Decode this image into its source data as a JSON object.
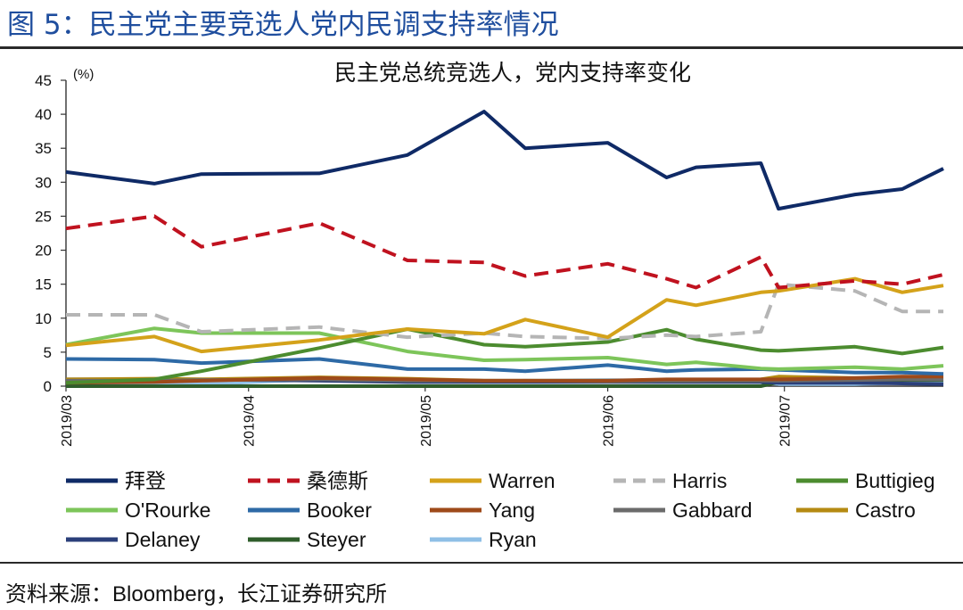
{
  "figure": {
    "title": "图 5：民主党主要竞选人党内民调支持率情况",
    "source_prefix": "资料来源：",
    "source_brand": "Bloomberg",
    "source_suffix": "，长江证券研究所"
  },
  "chart_data": {
    "type": "line",
    "title": "民主党总统竞选人，党内支持率变化",
    "unit": "(%)",
    "ylim": [
      0,
      45
    ],
    "yticks": [
      0,
      5,
      10,
      15,
      20,
      25,
      30,
      35,
      40,
      45
    ],
    "xlim": [
      "2019-03-01",
      "2019-07-28"
    ],
    "xticks": [
      {
        "date": "2019-03-01",
        "label": "2019/03"
      },
      {
        "date": "2019-04-01",
        "label": "2019/04"
      },
      {
        "date": "2019-05-01",
        "label": "2019/05"
      },
      {
        "date": "2019-06-01",
        "label": "2019/06"
      },
      {
        "date": "2019-07-01",
        "label": "2019/07"
      }
    ],
    "dates": [
      "2019-03-01",
      "2019-03-16",
      "2019-03-24",
      "2019-04-13",
      "2019-04-28",
      "2019-05-11",
      "2019-05-18",
      "2019-06-01",
      "2019-06-11",
      "2019-06-16",
      "2019-06-27",
      "2019-06-30",
      "2019-07-13",
      "2019-07-21",
      "2019-07-28"
    ],
    "legend_position": "bottom",
    "grid": false,
    "series": [
      {
        "name": "拜登",
        "color": "#0f2a66",
        "dash": "solid",
        "values": [
          31.5,
          29.8,
          31.2,
          31.3,
          34.0,
          40.4,
          35.0,
          35.8,
          30.7,
          32.2,
          32.8,
          26.1,
          28.2,
          29.0,
          32.0
        ]
      },
      {
        "name": "桑德斯",
        "color": "#c0121f",
        "dash": "dashed",
        "values": [
          23.2,
          25.0,
          20.5,
          24.0,
          18.5,
          18.2,
          16.2,
          18.0,
          15.8,
          14.5,
          19.0,
          14.5,
          15.5,
          15.0,
          16.4
        ]
      },
      {
        "name": "Warren",
        "color": "#d4a21a",
        "dash": "solid",
        "values": [
          6.0,
          7.3,
          5.1,
          6.8,
          8.4,
          7.7,
          9.8,
          7.2,
          12.7,
          11.9,
          13.8,
          14.0,
          15.8,
          13.8,
          14.8
        ]
      },
      {
        "name": "Harris",
        "color": "#b5b5b5",
        "dash": "dashed",
        "values": [
          10.5,
          10.5,
          8.0,
          8.7,
          7.2,
          7.8,
          7.3,
          7.0,
          7.5,
          7.3,
          8.0,
          15.0,
          14.0,
          11.0,
          11.0
        ]
      },
      {
        "name": "Buttigieg",
        "color": "#4c8c2f",
        "dash": "solid",
        "values": [
          0.5,
          1.0,
          2.2,
          5.6,
          8.4,
          6.1,
          5.8,
          6.5,
          8.3,
          6.9,
          5.3,
          5.2,
          5.8,
          4.8,
          5.7
        ]
      },
      {
        "name": "O'Rourke",
        "color": "#7dc55a",
        "dash": "solid",
        "values": [
          6.1,
          8.5,
          7.8,
          7.8,
          5.1,
          3.8,
          3.9,
          4.2,
          3.2,
          3.5,
          2.6,
          2.5,
          2.8,
          2.5,
          3.0
        ]
      },
      {
        "name": "Booker",
        "color": "#2e6aa6",
        "dash": "solid",
        "values": [
          4.0,
          3.9,
          3.4,
          4.0,
          2.5,
          2.5,
          2.2,
          3.1,
          2.2,
          2.4,
          2.5,
          2.4,
          2.0,
          2.0,
          1.8
        ]
      },
      {
        "name": "Yang",
        "color": "#9e4a1a",
        "dash": "solid",
        "values": [
          0.5,
          0.6,
          0.8,
          1.2,
          1.0,
          0.8,
          0.8,
          0.8,
          1.0,
          1.0,
          1.0,
          1.0,
          1.2,
          1.4,
          1.4
        ]
      },
      {
        "name": "Gabbard",
        "color": "#6b6b6b",
        "dash": "solid",
        "values": [
          0.8,
          0.8,
          0.9,
          1.0,
          0.8,
          0.8,
          0.8,
          0.7,
          0.8,
          0.8,
          0.8,
          0.8,
          0.9,
          1.0,
          1.0
        ]
      },
      {
        "name": "Castro",
        "color": "#b58a12",
        "dash": "solid",
        "values": [
          1.0,
          1.1,
          1.0,
          1.3,
          1.1,
          0.8,
          0.8,
          0.8,
          0.8,
          0.8,
          1.0,
          1.4,
          1.2,
          1.2,
          1.3
        ]
      },
      {
        "name": "Delaney",
        "color": "#2b3f7a",
        "dash": "solid",
        "values": [
          1.0,
          1.0,
          1.0,
          0.8,
          0.6,
          0.6,
          0.6,
          0.6,
          0.6,
          0.6,
          0.6,
          0.5,
          0.5,
          0.4,
          0.3
        ]
      },
      {
        "name": "Steyer",
        "color": "#2f5d2b",
        "dash": "solid",
        "values": [
          0.0,
          0.0,
          0.0,
          0.0,
          0.0,
          0.0,
          0.0,
          0.0,
          0.0,
          0.0,
          0.0,
          0.6,
          0.8,
          0.9,
          0.9
        ]
      },
      {
        "name": "Ryan",
        "color": "#8fbfe6",
        "dash": "solid",
        "values": [
          0.3,
          0.3,
          0.3,
          1.0,
          0.6,
          0.7,
          0.8,
          0.9,
          0.8,
          0.8,
          0.6,
          0.3,
          0.3,
          0.5,
          0.5
        ]
      }
    ]
  }
}
